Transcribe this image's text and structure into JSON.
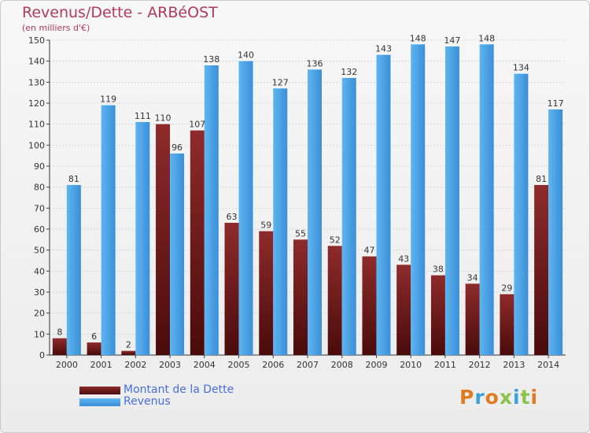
{
  "header": {
    "title": "Revenus/Dette - ARBéOST",
    "subtitle": "(en milliers d'€)"
  },
  "legend": [
    {
      "label": "Montant de la Dette",
      "color": "#6e1a1a"
    },
    {
      "label": "Revenus",
      "color": "#4aa3e8"
    }
  ],
  "logo": {
    "text": "Proxiti"
  },
  "chart_data": {
    "type": "bar",
    "categories": [
      "2000",
      "2001",
      "2002",
      "2003",
      "2004",
      "2005",
      "2006",
      "2007",
      "2008",
      "2009",
      "2010",
      "2011",
      "2012",
      "2013",
      "2014"
    ],
    "series": [
      {
        "name": "Montant de la Dette",
        "color": "#7a1f1f",
        "values": [
          8,
          6,
          2,
          110,
          107,
          63,
          59,
          55,
          52,
          47,
          43,
          38,
          34,
          29,
          81
        ]
      },
      {
        "name": "Revenus",
        "color": "#4aa3e8",
        "values": [
          81,
          119,
          111,
          96,
          138,
          140,
          127,
          136,
          132,
          143,
          148,
          147,
          148,
          134,
          117
        ]
      }
    ],
    "yticks": [
      0,
      10,
      20,
      30,
      40,
      50,
      60,
      70,
      80,
      90,
      100,
      110,
      120,
      130,
      140,
      150
    ],
    "ylim": [
      0,
      150
    ],
    "grid": true
  }
}
